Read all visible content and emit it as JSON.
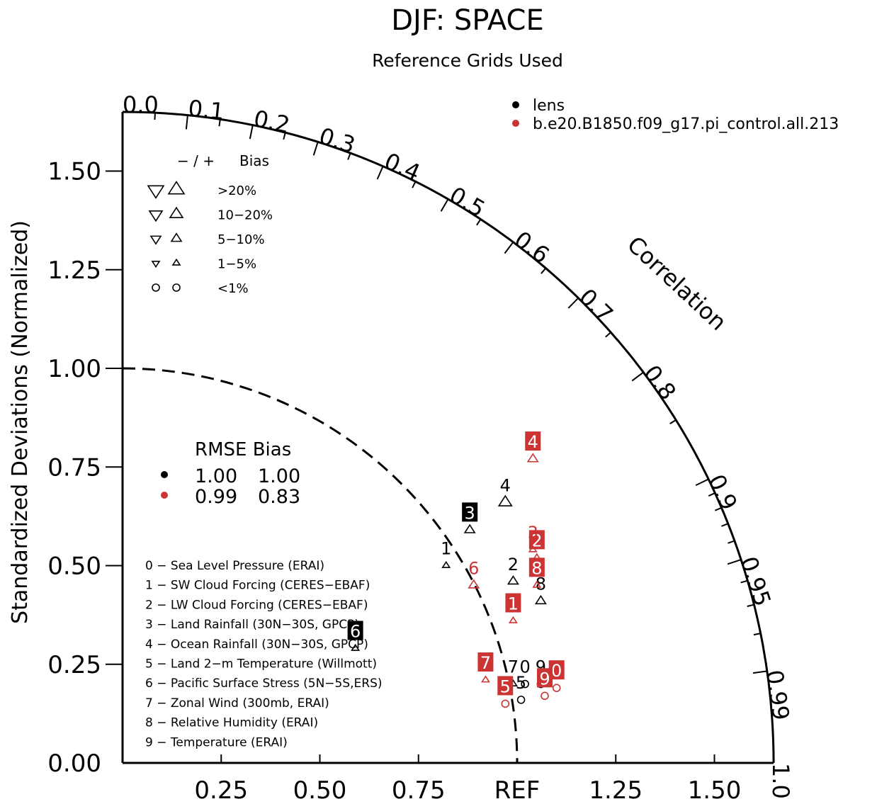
{
  "chart_data": {
    "type": "taylor",
    "title": "DJF: SPACE",
    "subtitle": "Reference Grids Used",
    "ylabel": "Standardized Deviations (Normalized)",
    "corr_label": "Correlation",
    "ref_label": "REF",
    "max_std": 1.65,
    "std_ticks": [
      {
        "value": 0.25,
        "label": "0.25"
      },
      {
        "value": 0.5,
        "label": "0.50"
      },
      {
        "value": 0.75,
        "label": "0.75"
      },
      {
        "value": 1.25,
        "label": "1.25"
      },
      {
        "value": 1.5,
        "label": "1.50"
      }
    ],
    "std_ticks_y": [
      {
        "value": 0.0,
        "label": "0.00"
      },
      {
        "value": 0.25,
        "label": "0.25"
      },
      {
        "value": 0.5,
        "label": "0.50"
      },
      {
        "value": 0.75,
        "label": "0.75"
      },
      {
        "value": 1.0,
        "label": "1.00"
      },
      {
        "value": 1.25,
        "label": "1.25"
      },
      {
        "value": 1.5,
        "label": "1.50"
      }
    ],
    "corr_ticks_labeled": [
      {
        "value": 0.0,
        "label": "0.0"
      },
      {
        "value": 0.1,
        "label": "0.1"
      },
      {
        "value": 0.2,
        "label": "0.2"
      },
      {
        "value": 0.3,
        "label": "0.3"
      },
      {
        "value": 0.4,
        "label": "0.4"
      },
      {
        "value": 0.5,
        "label": "0.5"
      },
      {
        "value": 0.6,
        "label": "0.6"
      },
      {
        "value": 0.7,
        "label": "0.7"
      },
      {
        "value": 0.8,
        "label": "0.8"
      },
      {
        "value": 0.9,
        "label": "0.9"
      },
      {
        "value": 0.95,
        "label": "0.95"
      },
      {
        "value": 0.99,
        "label": "0.99"
      },
      {
        "value": 1.0,
        "label": "1.0"
      }
    ],
    "corr_ticks_minor": [
      0.05,
      0.15,
      0.25,
      0.35,
      0.45,
      0.55,
      0.65,
      0.75,
      0.85,
      0.91,
      0.92,
      0.93,
      0.94,
      0.96,
      0.97,
      0.98
    ],
    "legend": [
      {
        "name": "lens",
        "color": "#000000"
      },
      {
        "name": "b.e20.B1850.f09_g17.pi_control.all.213",
        "color": "#cc3333"
      }
    ],
    "bias_legend": {
      "header_sign": "− / +",
      "header_label": "Bias",
      "rows": [
        {
          "label": ">20%",
          "marker": "triangle",
          "size": 11
        },
        {
          "label": "10−20%",
          "marker": "triangle",
          "size": 9
        },
        {
          "label": "5−10%",
          "marker": "triangle",
          "size": 7
        },
        {
          "label": "1−5%",
          "marker": "triangle",
          "size": 5
        },
        {
          "label": "<1%",
          "marker": "circle",
          "size": 5
        }
      ]
    },
    "rmse_table": {
      "header": "RMSE Bias",
      "rows": [
        {
          "color": "#000000",
          "rmse": "1.00",
          "bias": "1.00"
        },
        {
          "color": "#cc3333",
          "rmse": "0.99",
          "bias": "0.83"
        }
      ]
    },
    "variables": [
      "0 − Sea Level Pressure (ERAI)",
      "1 − SW Cloud Forcing (CERES−EBAF)",
      "2 − LW Cloud Forcing (CERES−EBAF)",
      "3 − Land Rainfall (30N−30S, GPCP)",
      "4 − Ocean Rainfall (30N−30S, GPCP)",
      "5 − Land 2−m Temperature (Willmott)",
      "6 − Pacific Surface Stress (5N−5S,ERS)",
      "7 − Zonal Wind (300mb, ERAI)",
      "8 − Relative Humidity (ERAI)",
      "9 − Temperature (ERAI)"
    ],
    "series": [
      {
        "name": "lens",
        "color": "#000000",
        "points": [
          {
            "label": "0",
            "x": 1.02,
            "y": 0.2,
            "marker": "circle",
            "dir": "up",
            "size": 5,
            "boxed": false
          },
          {
            "label": "1",
            "x": 0.82,
            "y": 0.5,
            "marker": "triangle",
            "dir": "up",
            "size": 5,
            "boxed": false
          },
          {
            "label": "2",
            "x": 0.99,
            "y": 0.46,
            "marker": "triangle",
            "dir": "up",
            "size": 7,
            "boxed": false
          },
          {
            "label": "3",
            "x": 0.88,
            "y": 0.59,
            "marker": "triangle",
            "dir": "up",
            "size": 7,
            "boxed": true
          },
          {
            "label": "4",
            "x": 0.97,
            "y": 0.66,
            "marker": "triangle",
            "dir": "up",
            "size": 9,
            "boxed": false
          },
          {
            "label": "5",
            "x": 1.01,
            "y": 0.16,
            "marker": "circle",
            "dir": "up",
            "size": 5,
            "boxed": false
          },
          {
            "label": "6",
            "x": 0.59,
            "y": 0.29,
            "marker": "triangle",
            "dir": "up",
            "size": 5,
            "boxed": true
          },
          {
            "label": "7",
            "x": 0.99,
            "y": 0.2,
            "marker": "triangle",
            "dir": "up",
            "size": 5,
            "boxed": false
          },
          {
            "label": "8",
            "x": 1.06,
            "y": 0.41,
            "marker": "triangle",
            "dir": "up",
            "size": 7,
            "boxed": false
          },
          {
            "label": "9",
            "x": 1.06,
            "y": 0.2,
            "marker": "circle",
            "dir": "up",
            "size": 5,
            "boxed": false
          }
        ]
      },
      {
        "name": "b.e20.B1850.f09_g17.pi_control.all.213",
        "color": "#cc3333",
        "points": [
          {
            "label": "0",
            "x": 1.1,
            "y": 0.19,
            "marker": "circle",
            "dir": "up",
            "size": 5,
            "boxed": true
          },
          {
            "label": "1",
            "x": 0.99,
            "y": 0.36,
            "marker": "triangle",
            "dir": "up",
            "size": 5,
            "boxed": true
          },
          {
            "label": "2",
            "x": 1.05,
            "y": 0.52,
            "marker": "triangle",
            "dir": "up",
            "size": 5,
            "boxed": true
          },
          {
            "label": "3",
            "x": 1.04,
            "y": 0.54,
            "marker": "triangle",
            "dir": "up",
            "size": 5,
            "boxed": false
          },
          {
            "label": "4",
            "x": 1.04,
            "y": 0.77,
            "marker": "triangle",
            "dir": "up",
            "size": 7,
            "boxed": true
          },
          {
            "label": "5",
            "x": 0.97,
            "y": 0.15,
            "marker": "circle",
            "dir": "up",
            "size": 5,
            "boxed": true
          },
          {
            "label": "6",
            "x": 0.89,
            "y": 0.45,
            "marker": "triangle",
            "dir": "up",
            "size": 7,
            "boxed": false
          },
          {
            "label": "7",
            "x": 0.92,
            "y": 0.21,
            "marker": "triangle",
            "dir": "up",
            "size": 5,
            "boxed": true
          },
          {
            "label": "8",
            "x": 1.05,
            "y": 0.45,
            "marker": "triangle",
            "dir": "up",
            "size": 5,
            "boxed": true
          },
          {
            "label": "9",
            "x": 1.07,
            "y": 0.17,
            "marker": "circle",
            "dir": "up",
            "size": 5,
            "boxed": true
          }
        ]
      }
    ]
  }
}
